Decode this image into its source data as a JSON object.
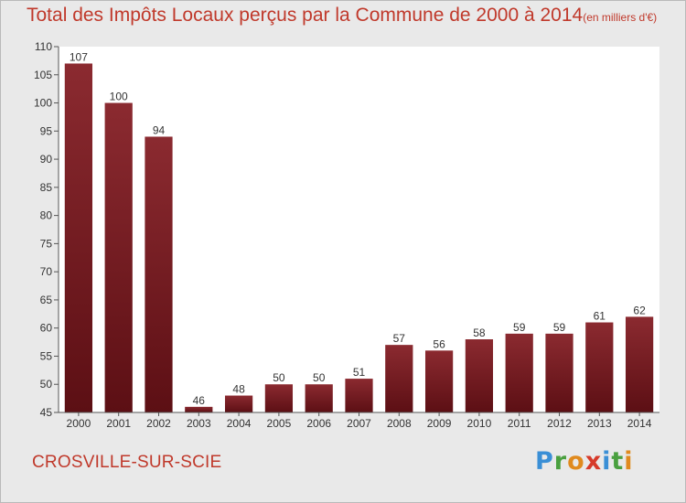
{
  "header": {
    "title": "Total des Impôts Locaux perçus par la Commune de 2000 à 2014",
    "unit": "(en milliers d'€)"
  },
  "commune": "CROSVILLE-SUR-SCIE",
  "logo": {
    "letters": [
      {
        "ch": "P",
        "color": "#3a8fd6"
      },
      {
        "ch": "r",
        "color": "#4aa03f"
      },
      {
        "ch": "o",
        "color": "#e08a1e"
      },
      {
        "ch": "x",
        "color": "#d63a2a"
      },
      {
        "ch": "i",
        "color": "#3a8fd6"
      },
      {
        "ch": "t",
        "color": "#4aa03f"
      },
      {
        "ch": "i",
        "color": "#e08a1e"
      }
    ]
  },
  "chart_data": {
    "type": "bar",
    "categories": [
      "2000",
      "2001",
      "2002",
      "2003",
      "2004",
      "2005",
      "2006",
      "2007",
      "2008",
      "2009",
      "2010",
      "2011",
      "2012",
      "2013",
      "2014"
    ],
    "values": [
      107,
      100,
      94,
      46,
      48,
      50,
      50,
      51,
      57,
      56,
      58,
      59,
      59,
      61,
      62
    ],
    "ylim": [
      45,
      110
    ],
    "yticks": [
      45,
      50,
      55,
      60,
      65,
      70,
      75,
      80,
      85,
      90,
      95,
      100,
      105,
      110
    ],
    "grid": false,
    "legend": "none",
    "bar_color_top": "#8b2a30",
    "bar_color_bottom": "#5c0f14"
  }
}
